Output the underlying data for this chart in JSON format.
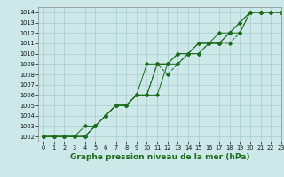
{
  "title": "Graphe pression niveau de la mer (hPa)",
  "bg_color": "#cce8e8",
  "grid_color": "#aacccc",
  "line_color": "#1a6b1a",
  "xlim": [
    -0.5,
    23
  ],
  "ylim": [
    1001.5,
    1014.5
  ],
  "xticks": [
    0,
    1,
    2,
    3,
    4,
    5,
    6,
    7,
    8,
    9,
    10,
    11,
    12,
    13,
    14,
    15,
    16,
    17,
    18,
    19,
    20,
    21,
    22,
    23
  ],
  "yticks": [
    1002,
    1003,
    1004,
    1005,
    1006,
    1007,
    1008,
    1009,
    1010,
    1011,
    1012,
    1013,
    1014
  ],
  "series": [
    {
      "x": [
        0,
        1,
        2,
        3,
        4,
        5,
        6,
        7,
        8,
        9,
        10,
        11,
        12,
        13,
        14,
        15,
        16,
        17,
        18,
        19,
        20,
        21,
        22,
        23
      ],
      "y": [
        1002,
        1002,
        1002,
        1002,
        1002,
        1003,
        1004,
        1005,
        1005,
        1006,
        1009,
        1009,
        1009,
        1009,
        1010,
        1010,
        1011,
        1011,
        1012,
        1012,
        1014,
        1014,
        1014,
        1014
      ],
      "style": "-",
      "marker": "D",
      "markersize": 1.8
    },
    {
      "x": [
        0,
        1,
        2,
        3,
        4,
        5,
        6,
        7,
        8,
        9,
        10,
        11,
        12,
        13,
        14,
        15,
        16,
        17,
        18,
        19,
        20,
        21,
        22,
        23
      ],
      "y": [
        1002,
        1002,
        1002,
        1002,
        1002,
        1003,
        1004,
        1005,
        1005,
        1006,
        1006,
        1009,
        1008,
        1009,
        1010,
        1010,
        1011,
        1011,
        1011,
        1012,
        1014,
        1014,
        1014,
        1014
      ],
      "style": "--",
      "marker": "D",
      "markersize": 1.8
    },
    {
      "x": [
        0,
        1,
        2,
        3,
        4,
        5,
        6,
        7,
        8,
        9,
        10,
        11,
        12,
        13,
        14,
        15,
        16,
        17,
        18,
        19,
        20,
        21,
        22,
        23
      ],
      "y": [
        1002,
        1002,
        1002,
        1002,
        1002,
        1003,
        1004,
        1005,
        1005,
        1006,
        1006,
        1009,
        1009,
        1010,
        1010,
        1011,
        1011,
        1011,
        1012,
        1013,
        1014,
        1014,
        1014,
        1014
      ],
      "style": "-",
      "marker": "D",
      "markersize": 1.8
    },
    {
      "x": [
        0,
        1,
        2,
        3,
        4,
        5,
        6,
        7,
        8,
        9,
        10,
        11,
        12,
        13,
        14,
        15,
        16,
        17,
        18,
        19,
        20,
        21,
        22,
        23
      ],
      "y": [
        1002,
        1002,
        1002,
        1002,
        1003,
        1003,
        1004,
        1005,
        1005,
        1006,
        1006,
        1006,
        1009,
        1010,
        1010,
        1011,
        1011,
        1012,
        1012,
        1013,
        1014,
        1014,
        1014,
        1014
      ],
      "style": "-",
      "marker": "D",
      "markersize": 1.8
    }
  ],
  "ylabel_fontsize": 5.0,
  "xlabel_fontsize": 6.5,
  "tick_fontsize": 4.8,
  "linewidth": 0.7
}
